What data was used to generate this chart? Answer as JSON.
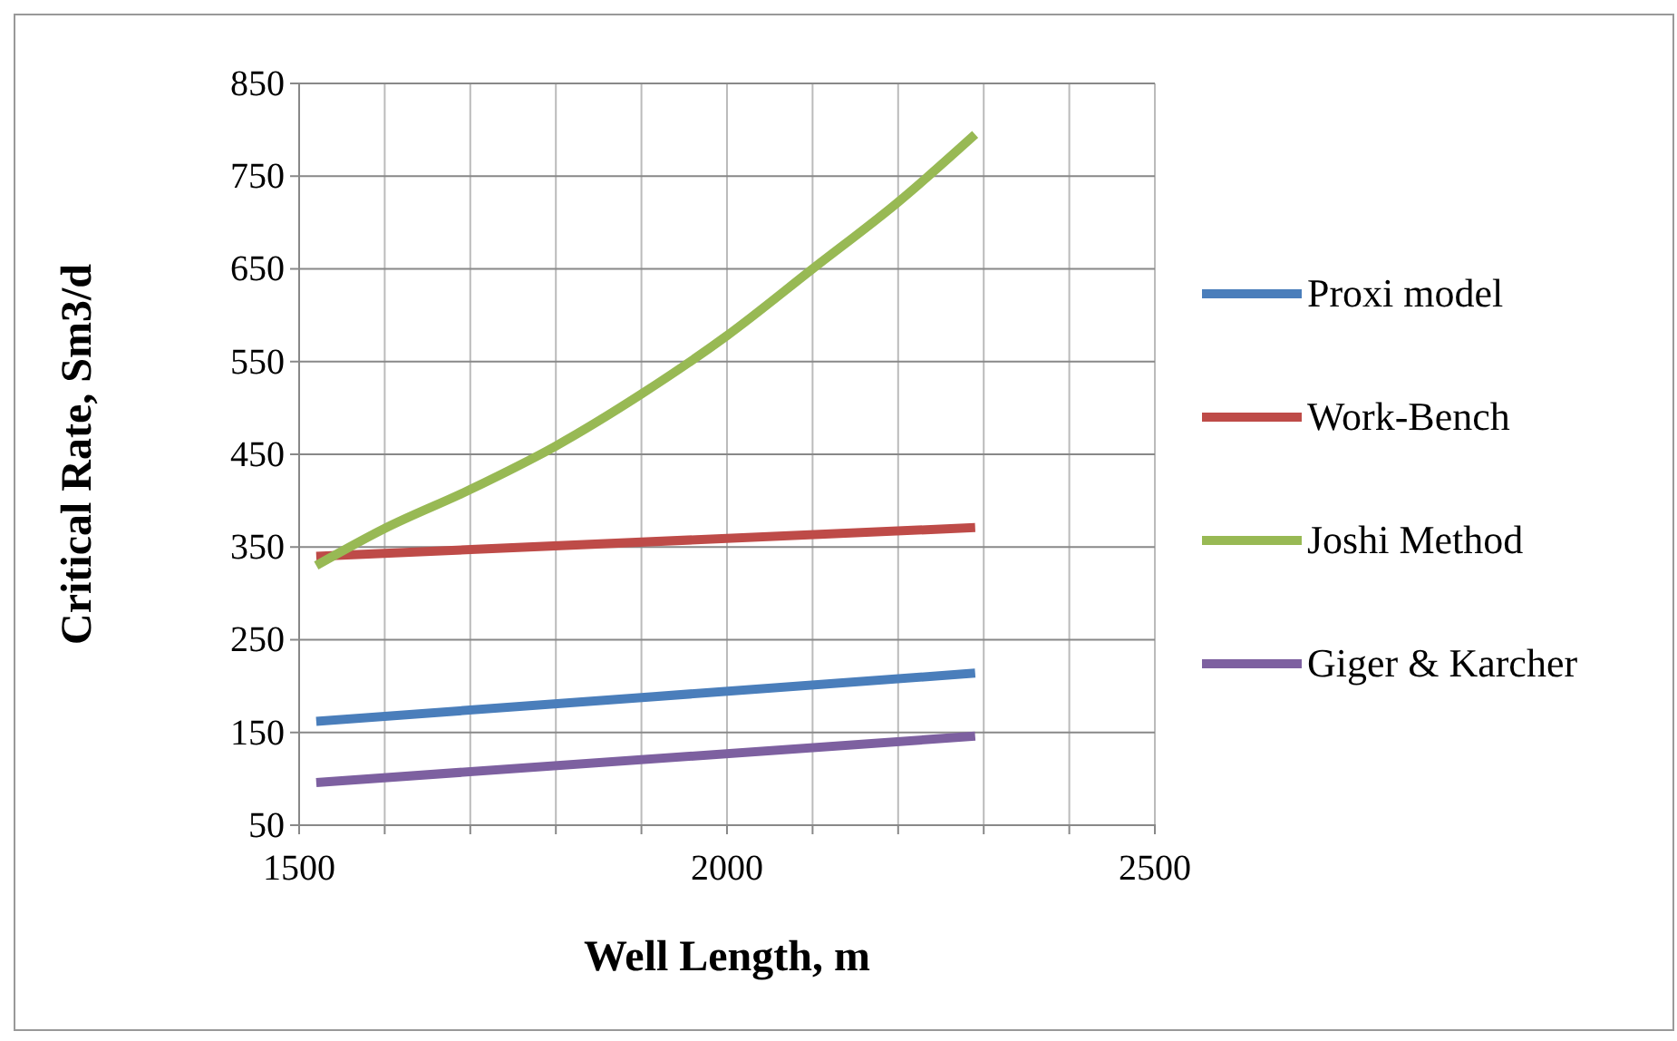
{
  "chart_data": {
    "type": "line",
    "xlabel": "Well Length, m",
    "ylabel": "Critical Rate, Sm3/d",
    "xlim": [
      1500,
      2500
    ],
    "xticks": [
      1500,
      {
        "value": 1600,
        "label": null
      },
      {
        "value": 1700,
        "label": null
      },
      {
        "value": 1800,
        "label": null
      },
      {
        "value": 1900,
        "label": null
      },
      2000,
      {
        "value": 2100,
        "label": null
      },
      {
        "value": 2200,
        "label": null
      },
      {
        "value": 2300,
        "label": null
      },
      {
        "value": 2400,
        "label": null
      },
      2500
    ],
    "ylim": [
      50,
      850
    ],
    "yticks": [
      50,
      150,
      250,
      350,
      450,
      550,
      650,
      750,
      850
    ],
    "grid": true,
    "legend": "right",
    "marker": "none",
    "line_style": "solid",
    "series": [
      {
        "name": "Proxi model",
        "color": "#4a7ebb",
        "x": [
          1520,
          2290
        ],
        "values": [
          162,
          214
        ]
      },
      {
        "name": "Work-Bench",
        "color": "#be4b48",
        "x": [
          1520,
          2290
        ],
        "values": [
          340,
          371
        ]
      },
      {
        "name": "Joshi Method",
        "color": "#98b954",
        "x": [
          1520,
          1600,
          1700,
          1800,
          1900,
          2000,
          2100,
          2200,
          2290
        ],
        "values": [
          330,
          370,
          412,
          459,
          515,
          578,
          650,
          722,
          795
        ]
      },
      {
        "name": "Giger & Karcher",
        "color": "#7d60a0",
        "x": [
          1520,
          2290
        ],
        "values": [
          96,
          146
        ]
      }
    ]
  }
}
